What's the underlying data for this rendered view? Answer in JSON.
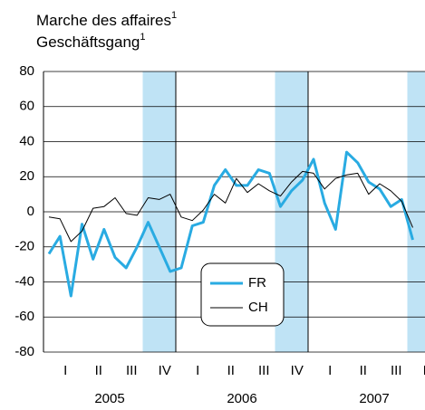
{
  "chart_data": {
    "type": "line",
    "title": [
      "Marche des affaires",
      "Geschäftsgang"
    ],
    "title_note": "1",
    "categories": [
      null,
      null,
      null,
      null,
      null,
      null,
      null,
      null,
      null,
      null,
      null,
      null,
      null,
      null,
      null,
      null,
      null,
      null,
      null,
      null,
      null,
      null,
      null,
      null,
      null,
      null,
      null,
      null,
      null,
      null,
      null,
      null,
      null,
      null
    ],
    "series": [
      {
        "name": "FR",
        "color": "#29abe2",
        "width": 3,
        "values": [
          -24,
          -14,
          -48,
          -7,
          -27,
          -10,
          -26,
          -32,
          -20,
          -6,
          -20,
          -34,
          -32,
          -8,
          -6,
          15,
          24,
          15,
          15,
          24,
          22,
          3,
          12,
          18,
          30,
          5,
          -10,
          34,
          28,
          17,
          13,
          3,
          7,
          -16
        ]
      },
      {
        "name": "CH",
        "color": "#000000",
        "width": 1,
        "values": [
          -3,
          -4,
          -17,
          -11,
          2,
          3,
          8,
          -1,
          -2,
          8,
          7,
          10,
          -3,
          -5,
          1,
          10,
          5,
          19,
          11,
          16,
          12,
          9,
          17,
          23,
          22,
          13,
          19,
          21,
          22,
          10,
          16,
          12,
          6,
          -9
        ]
      }
    ],
    "ylim": [
      -80,
      80
    ],
    "yticks": [
      -80,
      -60,
      -40,
      -20,
      0,
      20,
      40,
      60,
      80
    ],
    "quarter_labels": [
      "I",
      "II",
      "III",
      "IV",
      "I",
      "II",
      "III",
      "IV",
      "I",
      "II",
      "III",
      "IV"
    ],
    "year_labels": [
      "2005",
      "2006",
      "2007"
    ],
    "grid": true,
    "legend": "bottom-center"
  }
}
